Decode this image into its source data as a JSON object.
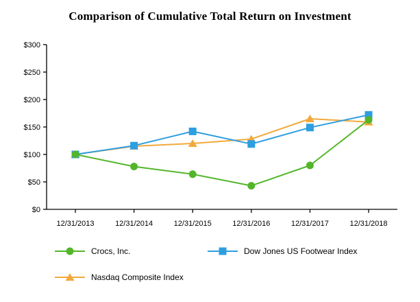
{
  "chart_data": {
    "type": "line",
    "title": "Comparison of Cumulative Total Return on Investment",
    "xlabel": "",
    "ylabel": "",
    "categories": [
      "12/31/2013",
      "12/31/2014",
      "12/31/2015",
      "12/31/2016",
      "12/31/2017",
      "12/31/2018"
    ],
    "series": [
      {
        "name": "Crocs, Inc.",
        "marker": "circle",
        "color": "#53B62A",
        "values": [
          100,
          78,
          64,
          43,
          80,
          163
        ]
      },
      {
        "name": "Dow Jones US Footwear Index",
        "marker": "square",
        "color": "#2D9EE0",
        "values": [
          100,
          116,
          142,
          119,
          149,
          172
        ]
      },
      {
        "name": "Nasdaq Composite Index",
        "marker": "triangle",
        "color": "#F2A93B",
        "values": [
          100,
          115,
          120,
          128,
          165,
          159
        ]
      }
    ],
    "ylim": [
      0,
      300
    ],
    "ytick_step": 50,
    "ytick_labels": [
      "$0",
      "$50",
      "$100",
      "$150",
      "$200",
      "$250",
      "$300"
    ],
    "axis_color": "#000000",
    "grid": false,
    "legend_position": "bottom"
  }
}
